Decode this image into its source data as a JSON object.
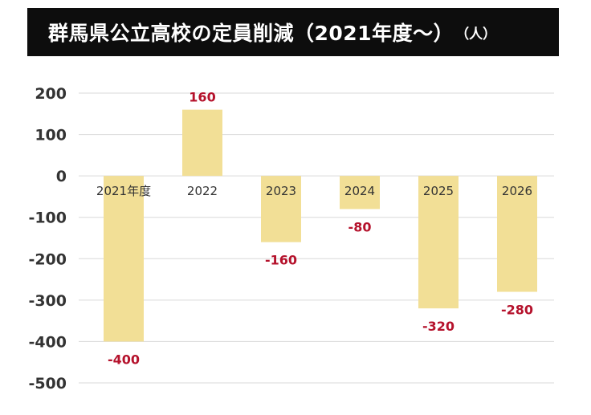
{
  "header": {
    "title": "群馬県公立高校の定員削減（2021年度～）",
    "unit": "（人）"
  },
  "chart_data": {
    "type": "bar",
    "title": "群馬県公立高校の定員削減（2021年度～）",
    "ylabel": "（人）",
    "categories": [
      "2021年度",
      "2022",
      "2023",
      "2024",
      "2025",
      "2026"
    ],
    "values": [
      -400,
      160,
      -160,
      -80,
      -320,
      -280
    ],
    "data_labels": [
      "-400",
      "160",
      "-160",
      "-80",
      "-320",
      "-280"
    ],
    "ylim": [
      -500,
      200
    ],
    "yticks": [
      200,
      100,
      0,
      -100,
      -200,
      -300,
      -400,
      -500
    ],
    "ytick_labels": [
      "200",
      "100",
      "0",
      "-100",
      "-200",
      "-300",
      "-400",
      "-500"
    ],
    "grid": true,
    "bar_color": "#f2df96",
    "label_color": "#b5122c",
    "text_color": "#333333",
    "grid_color": "#d9d9d9"
  }
}
